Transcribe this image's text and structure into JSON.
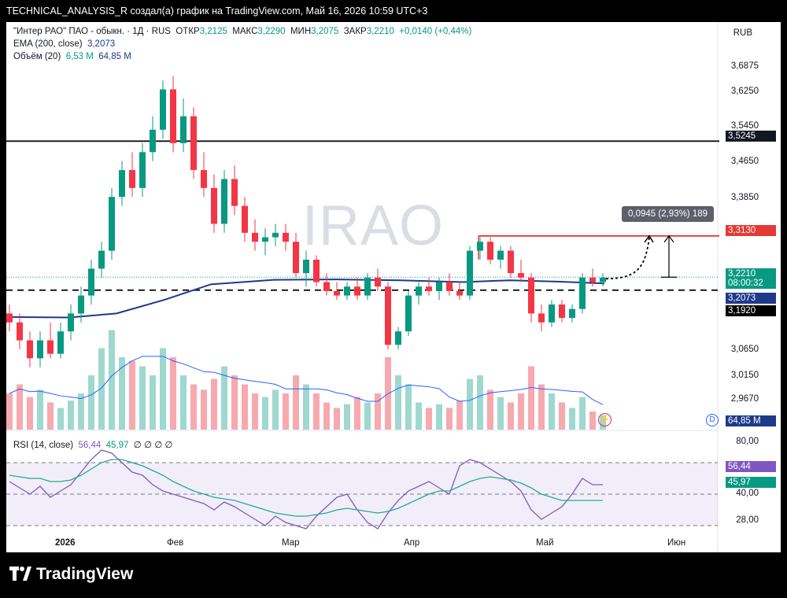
{
  "header": {
    "caption": "TECHNICAL_ANALYSIS_R создал(а) график на TradingView.com, Май 16, 2026 10:59 UTC+3"
  },
  "legend": {
    "symbol": "\"Интер РАО\" ПАО - обыкн. · 1Д · RUS",
    "open_label": "ОТКР",
    "open": "3,2125",
    "high_label": "МАКС",
    "high": "3,2290",
    "low_label": "МИН",
    "low": "3,2075",
    "close_label": "ЗАКР",
    "close": "3,2210",
    "change": "+0,0140 (+0,44%)",
    "ema_label": "EMA (200, close)",
    "ema_value": "3,2073",
    "volume_label": "Объём (20)",
    "volume_value": "6,53 M",
    "volume_ma": "64,85 M",
    "rsi_label": "RSI (14, close)",
    "rsi_value": "56,44",
    "rsi_ma": "45,97",
    "rsi_extra": "∅ ∅ ∅ ∅"
  },
  "currency": "RUB",
  "watermark": "IRAO",
  "measure_label": "0,0945 (2,93%) 189",
  "brand": "TradingView",
  "price_ticks": [
    "3,6875",
    "3,6250",
    "3,5450",
    "3,4650",
    "3,3850",
    "3,0650",
    "3,0150",
    "2,9670"
  ],
  "rsi_ticks": [
    "80,00",
    "40,00",
    "28,00"
  ],
  "time_ticks": [
    "2026",
    "Фев",
    "Мар",
    "Апр",
    "Май",
    "Июн"
  ],
  "tags": {
    "resistance": "3,3130",
    "current": "3,2210",
    "countdown": "08:00:32",
    "support_top": "3,5245",
    "ema": "3,2073",
    "support": "3,1920",
    "volume": "64,85 M",
    "rsi": "56,44",
    "rsi_ma": "45,97"
  },
  "colors": {
    "up": "#089981",
    "down": "#f23645",
    "ema": "#1e3a8a",
    "rsi": "#7e57c2",
    "rsi_ma": "#22ab94",
    "resistance": "#e53935",
    "vol_up": "#9fd8cf",
    "vol_down": "#f7a9b0"
  },
  "icons": {
    "d_badge": "D",
    "flash": "⚡"
  },
  "chart_data": {
    "type": "candlestick",
    "instrument": "IRAO",
    "timeframe": "1D",
    "price_range": [
      2.93,
      3.72
    ],
    "levels": [
      {
        "price": 3.5245,
        "style": "solid",
        "color": "#000000"
      },
      {
        "price": 3.313,
        "style": "solid",
        "color": "#e53935"
      },
      {
        "price": 3.192,
        "style": "dashed",
        "color": "#000000"
      }
    ],
    "ohlc_last": {
      "open": 3.2125,
      "high": 3.229,
      "low": 3.2075,
      "close": 3.221
    },
    "ema200_last": 3.2073,
    "rsi_last": 56.44,
    "rsi_ma_last": 45.97,
    "candles": [
      [
        3.14,
        3.16,
        3.1,
        3.12
      ],
      [
        3.12,
        3.14,
        3.06,
        3.08
      ],
      [
        3.08,
        3.1,
        3.02,
        3.04
      ],
      [
        3.04,
        3.1,
        3.02,
        3.08
      ],
      [
        3.08,
        3.12,
        3.04,
        3.05
      ],
      [
        3.05,
        3.12,
        3.04,
        3.1
      ],
      [
        3.1,
        3.16,
        3.08,
        3.14
      ],
      [
        3.14,
        3.2,
        3.12,
        3.18
      ],
      [
        3.18,
        3.26,
        3.16,
        3.24
      ],
      [
        3.24,
        3.3,
        3.22,
        3.28
      ],
      [
        3.28,
        3.42,
        3.26,
        3.4
      ],
      [
        3.4,
        3.48,
        3.38,
        3.46
      ],
      [
        3.46,
        3.5,
        3.4,
        3.42
      ],
      [
        3.42,
        3.52,
        3.4,
        3.5
      ],
      [
        3.5,
        3.58,
        3.48,
        3.55
      ],
      [
        3.55,
        3.66,
        3.53,
        3.64
      ],
      [
        3.64,
        3.67,
        3.5,
        3.52
      ],
      [
        3.52,
        3.62,
        3.5,
        3.58
      ],
      [
        3.58,
        3.6,
        3.44,
        3.46
      ],
      [
        3.46,
        3.5,
        3.4,
        3.42
      ],
      [
        3.42,
        3.45,
        3.32,
        3.34
      ],
      [
        3.34,
        3.46,
        3.32,
        3.44
      ],
      [
        3.44,
        3.47,
        3.36,
        3.38
      ],
      [
        3.38,
        3.4,
        3.3,
        3.32
      ],
      [
        3.32,
        3.35,
        3.28,
        3.3
      ],
      [
        3.3,
        3.33,
        3.27,
        3.31
      ],
      [
        3.31,
        3.34,
        3.29,
        3.32
      ],
      [
        3.32,
        3.34,
        3.28,
        3.3
      ],
      [
        3.3,
        3.32,
        3.22,
        3.23
      ],
      [
        3.23,
        3.28,
        3.2,
        3.26
      ],
      [
        3.26,
        3.27,
        3.2,
        3.21
      ],
      [
        3.21,
        3.23,
        3.18,
        3.19
      ],
      [
        3.19,
        3.21,
        3.17,
        3.18
      ],
      [
        3.18,
        3.21,
        3.17,
        3.2
      ],
      [
        3.2,
        3.22,
        3.17,
        3.18
      ],
      [
        3.18,
        3.23,
        3.17,
        3.22
      ],
      [
        3.22,
        3.24,
        3.19,
        3.2
      ],
      [
        3.2,
        3.21,
        3.06,
        3.07
      ],
      [
        3.07,
        3.11,
        3.06,
        3.1
      ],
      [
        3.1,
        3.19,
        3.09,
        3.18
      ],
      [
        3.18,
        3.21,
        3.16,
        3.2
      ],
      [
        3.2,
        3.22,
        3.18,
        3.19
      ],
      [
        3.19,
        3.22,
        3.17,
        3.21
      ],
      [
        3.21,
        3.23,
        3.18,
        3.19
      ],
      [
        3.19,
        3.21,
        3.17,
        3.18
      ],
      [
        3.18,
        3.29,
        3.17,
        3.28
      ],
      [
        3.28,
        3.31,
        3.26,
        3.3
      ],
      [
        3.3,
        3.31,
        3.25,
        3.26
      ],
      [
        3.26,
        3.29,
        3.24,
        3.28
      ],
      [
        3.28,
        3.29,
        3.22,
        3.23
      ],
      [
        3.23,
        3.26,
        3.21,
        3.22
      ],
      [
        3.22,
        3.23,
        3.12,
        3.14
      ],
      [
        3.14,
        3.16,
        3.1,
        3.12
      ],
      [
        3.12,
        3.17,
        3.11,
        3.16
      ],
      [
        3.16,
        3.17,
        3.12,
        3.13
      ],
      [
        3.13,
        3.16,
        3.12,
        3.15
      ],
      [
        3.15,
        3.23,
        3.14,
        3.22
      ],
      [
        3.22,
        3.24,
        3.2,
        3.21
      ],
      [
        3.21,
        3.23,
        3.2,
        3.22
      ]
    ],
    "volume": [
      20,
      25,
      18,
      22,
      15,
      12,
      16,
      20,
      30,
      45,
      55,
      40,
      38,
      35,
      30,
      45,
      40,
      30,
      25,
      22,
      28,
      35,
      30,
      25,
      20,
      18,
      22,
      20,
      30,
      25,
      20,
      15,
      12,
      14,
      18,
      15,
      20,
      40,
      30,
      25,
      15,
      12,
      14,
      12,
      16,
      28,
      30,
      22,
      18,
      15,
      20,
      35,
      25,
      20,
      15,
      12,
      18,
      10,
      8
    ],
    "rsi": [
      58,
      54,
      50,
      55,
      48,
      52,
      56,
      64,
      72,
      78,
      76,
      70,
      64,
      62,
      56,
      52,
      50,
      48,
      46,
      44,
      40,
      45,
      42,
      38,
      34,
      30,
      36,
      32,
      30,
      28,
      36,
      42,
      48,
      50,
      40,
      32,
      28,
      38,
      46,
      52,
      55,
      58,
      54,
      50,
      68,
      72,
      70,
      66,
      62,
      58,
      52,
      40,
      34,
      38,
      42,
      50,
      60,
      56,
      56
    ],
    "rsi_ma": [
      62,
      61,
      60,
      60,
      58,
      58,
      59,
      62,
      66,
      70,
      72,
      72,
      70,
      68,
      65,
      62,
      58,
      55,
      52,
      50,
      48,
      47,
      46,
      44,
      42,
      40,
      38,
      37,
      36,
      36,
      37,
      38,
      40,
      41,
      40,
      39,
      38,
      39,
      41,
      44,
      47,
      50,
      52,
      52,
      55,
      58,
      60,
      61,
      60,
      59,
      57,
      54,
      50,
      48,
      46,
      46,
      46,
      46,
      46
    ]
  }
}
